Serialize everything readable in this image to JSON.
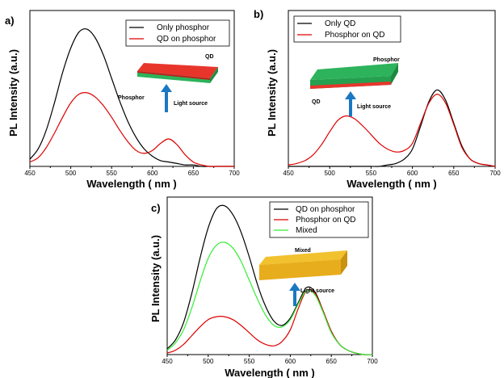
{
  "colors": {
    "black": "#000000",
    "red": "#dd0000",
    "green": "#33ee33",
    "qd_layer": "#e8352c",
    "phosphor_layer": "#2db35b",
    "mixed_layer": "#f2c12e",
    "arrow": "#1a78c2"
  },
  "chart_data": [
    {
      "type": "line",
      "panel_label": "a)",
      "xlabel": "Wavelength ( nm )",
      "ylabel": "PL Intensity (a.u.)",
      "xlim": [
        450,
        700
      ],
      "ylim": [
        0,
        1.08
      ],
      "x_ticks": [
        450,
        500,
        550,
        600,
        650,
        700
      ],
      "y_ticks_shown": false,
      "legend": "top-right",
      "series": [
        {
          "name": "Only phosphor",
          "color_key": "black",
          "x": [
            450,
            460,
            470,
            480,
            490,
            500,
            510,
            520,
            530,
            540,
            550,
            560,
            570,
            580,
            590,
            600,
            610,
            620,
            630,
            640,
            650,
            660,
            670,
            680,
            690,
            700
          ],
          "y": [
            0.05,
            0.12,
            0.25,
            0.44,
            0.65,
            0.82,
            0.93,
            0.95,
            0.89,
            0.77,
            0.61,
            0.45,
            0.31,
            0.2,
            0.12,
            0.07,
            0.04,
            0.03,
            0.02,
            0.01,
            0.01,
            0.0,
            0.0,
            0.0,
            0.0,
            0.0
          ]
        },
        {
          "name": "QD on phosphor",
          "color_key": "red",
          "x": [
            450,
            460,
            470,
            480,
            490,
            500,
            510,
            520,
            530,
            540,
            550,
            560,
            570,
            580,
            590,
            600,
            610,
            620,
            630,
            640,
            650,
            660,
            670,
            680,
            690,
            700
          ],
          "y": [
            0.03,
            0.06,
            0.13,
            0.23,
            0.34,
            0.44,
            0.5,
            0.51,
            0.48,
            0.42,
            0.34,
            0.25,
            0.17,
            0.11,
            0.09,
            0.11,
            0.16,
            0.19,
            0.15,
            0.08,
            0.03,
            0.01,
            0.0,
            0.0,
            0.0,
            0.0
          ]
        }
      ],
      "inset": {
        "labels": [
          "QD",
          "Phosphor",
          "Light source"
        ]
      }
    },
    {
      "type": "line",
      "panel_label": "b)",
      "xlabel": "Wavelength ( nm )",
      "ylabel": "PL Intensity (a.u.)",
      "xlim": [
        450,
        700
      ],
      "ylim": [
        0,
        1.08
      ],
      "x_ticks": [
        450,
        500,
        550,
        600,
        650,
        700
      ],
      "y_ticks_shown": false,
      "legend": "top-right",
      "series": [
        {
          "name": "Only QD",
          "color_key": "black",
          "x": [
            450,
            460,
            470,
            480,
            490,
            500,
            510,
            520,
            530,
            540,
            550,
            560,
            570,
            580,
            590,
            600,
            610,
            620,
            630,
            640,
            650,
            660,
            670,
            680,
            690,
            700
          ],
          "y": [
            0.0,
            0.0,
            0.0,
            0.0,
            0.0,
            0.0,
            0.0,
            0.0,
            0.0,
            0.0,
            0.0,
            0.0,
            0.01,
            0.02,
            0.05,
            0.12,
            0.28,
            0.45,
            0.53,
            0.46,
            0.3,
            0.14,
            0.05,
            0.02,
            0.01,
            0.0
          ]
        },
        {
          "name": "Phosphor on QD",
          "color_key": "red",
          "x": [
            450,
            460,
            470,
            480,
            490,
            500,
            510,
            520,
            530,
            540,
            550,
            560,
            570,
            580,
            590,
            600,
            610,
            620,
            630,
            640,
            650,
            660,
            670,
            680,
            690,
            700
          ],
          "y": [
            0.01,
            0.02,
            0.04,
            0.08,
            0.15,
            0.24,
            0.32,
            0.35,
            0.33,
            0.28,
            0.22,
            0.16,
            0.12,
            0.1,
            0.11,
            0.16,
            0.3,
            0.44,
            0.5,
            0.44,
            0.29,
            0.13,
            0.05,
            0.02,
            0.01,
            0.0
          ]
        }
      ],
      "inset": {
        "labels": [
          "Phosphor",
          "QD",
          "Light source"
        ]
      }
    },
    {
      "type": "line",
      "panel_label": "c)",
      "xlabel": "Wavelength ( nm )",
      "ylabel": "PL Intensity (a.u.)",
      "xlim": [
        450,
        700
      ],
      "ylim": [
        0,
        1.08
      ],
      "x_ticks": [
        450,
        500,
        550,
        600,
        650,
        700
      ],
      "y_ticks_shown": false,
      "legend": "top-right",
      "series": [
        {
          "name": "QD on phosphor",
          "color_key": "black",
          "x": [
            450,
            460,
            470,
            480,
            490,
            500,
            510,
            520,
            530,
            540,
            550,
            560,
            570,
            580,
            590,
            600,
            610,
            620,
            630,
            640,
            650,
            660,
            670,
            680,
            690,
            700
          ],
          "y": [
            0.04,
            0.1,
            0.22,
            0.42,
            0.66,
            0.87,
            1.0,
            1.02,
            0.96,
            0.84,
            0.67,
            0.48,
            0.33,
            0.23,
            0.2,
            0.25,
            0.36,
            0.46,
            0.43,
            0.3,
            0.16,
            0.07,
            0.03,
            0.01,
            0.0,
            0.0
          ]
        },
        {
          "name": "Phosphor on QD",
          "color_key": "red",
          "x": [
            450,
            460,
            470,
            480,
            490,
            500,
            510,
            520,
            530,
            540,
            550,
            560,
            570,
            580,
            590,
            600,
            610,
            620,
            630,
            640,
            650,
            660,
            670,
            680,
            690,
            700
          ],
          "y": [
            0.01,
            0.03,
            0.07,
            0.13,
            0.19,
            0.24,
            0.26,
            0.26,
            0.24,
            0.2,
            0.15,
            0.1,
            0.07,
            0.06,
            0.09,
            0.17,
            0.32,
            0.44,
            0.42,
            0.3,
            0.16,
            0.07,
            0.03,
            0.01,
            0.0,
            0.0
          ]
        },
        {
          "name": "Mixed",
          "color_key": "green",
          "x": [
            450,
            460,
            470,
            480,
            490,
            500,
            510,
            520,
            530,
            540,
            550,
            560,
            570,
            580,
            590,
            600,
            610,
            620,
            630,
            640,
            650,
            660,
            670,
            680,
            690,
            700
          ],
          "y": [
            0.03,
            0.08,
            0.17,
            0.32,
            0.5,
            0.66,
            0.75,
            0.77,
            0.73,
            0.64,
            0.51,
            0.38,
            0.27,
            0.2,
            0.19,
            0.24,
            0.35,
            0.44,
            0.41,
            0.29,
            0.15,
            0.07,
            0.03,
            0.01,
            0.0,
            0.0
          ]
        }
      ],
      "inset": {
        "labels": [
          "Mixed",
          "Light source"
        ]
      }
    }
  ]
}
